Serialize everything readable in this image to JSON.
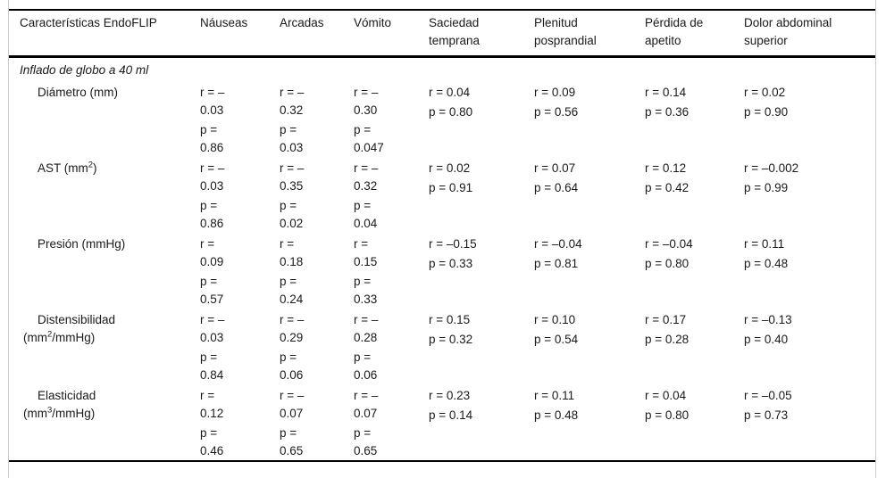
{
  "table": {
    "header": [
      "Características EndoFLIP",
      "Náuseas",
      "Arcadas",
      "Vómito",
      "Saciedad temprana",
      "Plenitud posprandial",
      "Pérdida de apetito",
      "Dolor abdominal superior"
    ],
    "section_title": "Inflado de globo a 40 ml",
    "rows": [
      {
        "label_lines": [
          "Diámetro (mm)"
        ],
        "cells": [
          {
            "r_lines": [
              "r = –",
              "0.03"
            ],
            "p_lines": [
              "p =",
              "0.86"
            ]
          },
          {
            "r_lines": [
              "r = –",
              "0.32"
            ],
            "p_lines": [
              "p =",
              "0.03"
            ]
          },
          {
            "r_lines": [
              "r = –",
              "0.30"
            ],
            "p_lines": [
              "p =",
              "0.047"
            ]
          },
          {
            "r_lines": [
              "r = 0.04"
            ],
            "p_lines": [
              "p = 0.80"
            ]
          },
          {
            "r_lines": [
              "r = 0.09"
            ],
            "p_lines": [
              "p = 0.56"
            ]
          },
          {
            "r_lines": [
              "r = 0.14"
            ],
            "p_lines": [
              "p = 0.36"
            ]
          },
          {
            "r_lines": [
              "r = 0.02"
            ],
            "p_lines": [
              "p = 0.90"
            ]
          }
        ]
      },
      {
        "label_lines": [
          "AST (mm²)"
        ],
        "cells": [
          {
            "r_lines": [
              "r = –",
              "0.03"
            ],
            "p_lines": [
              "p =",
              "0.86"
            ]
          },
          {
            "r_lines": [
              "r = –",
              "0.35"
            ],
            "p_lines": [
              "p =",
              "0.02"
            ]
          },
          {
            "r_lines": [
              "r = –",
              "0.32"
            ],
            "p_lines": [
              "p =",
              "0.04"
            ]
          },
          {
            "r_lines": [
              "r = 0.02"
            ],
            "p_lines": [
              "p = 0.91"
            ]
          },
          {
            "r_lines": [
              "r = 0.07"
            ],
            "p_lines": [
              "p = 0.64"
            ]
          },
          {
            "r_lines": [
              "r = 0.12"
            ],
            "p_lines": [
              "p = 0.42"
            ]
          },
          {
            "r_lines": [
              "r = –0.002"
            ],
            "p_lines": [
              "p = 0.99"
            ]
          }
        ]
      },
      {
        "label_lines": [
          "Presión (mmHg)"
        ],
        "cells": [
          {
            "r_lines": [
              "r =",
              "0.09"
            ],
            "p_lines": [
              "p =",
              "0.57"
            ]
          },
          {
            "r_lines": [
              "r =",
              "0.18"
            ],
            "p_lines": [
              "p =",
              "0.24"
            ]
          },
          {
            "r_lines": [
              "r =",
              "0.15"
            ],
            "p_lines": [
              "p =",
              "0.33"
            ]
          },
          {
            "r_lines": [
              "r = –0.15"
            ],
            "p_lines": [
              "p = 0.33"
            ]
          },
          {
            "r_lines": [
              "r = –0.04"
            ],
            "p_lines": [
              "p = 0.81"
            ]
          },
          {
            "r_lines": [
              "r = –0.04"
            ],
            "p_lines": [
              "p = 0.80"
            ]
          },
          {
            "r_lines": [
              "r = 0.11"
            ],
            "p_lines": [
              "p = 0.48"
            ]
          }
        ]
      },
      {
        "label_lines": [
          "Distensibilidad",
          "(mm²/mmHg)"
        ],
        "cells": [
          {
            "r_lines": [
              "r = –",
              "0.03"
            ],
            "p_lines": [
              "p =",
              "0.84"
            ]
          },
          {
            "r_lines": [
              "r = –",
              "0.29"
            ],
            "p_lines": [
              "p =",
              "0.06"
            ]
          },
          {
            "r_lines": [
              "r = –",
              "0.28"
            ],
            "p_lines": [
              "p =",
              "0.06"
            ]
          },
          {
            "r_lines": [
              "r = 0.15"
            ],
            "p_lines": [
              "p = 0.32"
            ]
          },
          {
            "r_lines": [
              "r = 0.10"
            ],
            "p_lines": [
              "p = 0.54"
            ]
          },
          {
            "r_lines": [
              "r = 0.17"
            ],
            "p_lines": [
              "p = 0.28"
            ]
          },
          {
            "r_lines": [
              "r = –0.13"
            ],
            "p_lines": [
              "p = 0.40"
            ]
          }
        ]
      },
      {
        "label_lines": [
          "Elasticidad",
          "(mm³/mmHg)"
        ],
        "cells": [
          {
            "r_lines": [
              "r =",
              "0.12"
            ],
            "p_lines": [
              "p =",
              "0.46"
            ]
          },
          {
            "r_lines": [
              "r = –",
              "0.07"
            ],
            "p_lines": [
              "p =",
              "0.65"
            ]
          },
          {
            "r_lines": [
              "r = –",
              "0.07"
            ],
            "p_lines": [
              "p =",
              "0.65"
            ]
          },
          {
            "r_lines": [
              "r = 0.23"
            ],
            "p_lines": [
              "p = 0.14"
            ]
          },
          {
            "r_lines": [
              "r = 0.11"
            ],
            "p_lines": [
              "p = 0.48"
            ]
          },
          {
            "r_lines": [
              "r = 0.04"
            ],
            "p_lines": [
              "p = 0.80"
            ]
          },
          {
            "r_lines": [
              "r = –0.05"
            ],
            "p_lines": [
              "p = 0.73"
            ]
          }
        ]
      }
    ]
  },
  "colors": {
    "rule": "#000000",
    "frame_border": "#cccccc",
    "text": "#1a1a1a",
    "background": "#ffffff"
  }
}
